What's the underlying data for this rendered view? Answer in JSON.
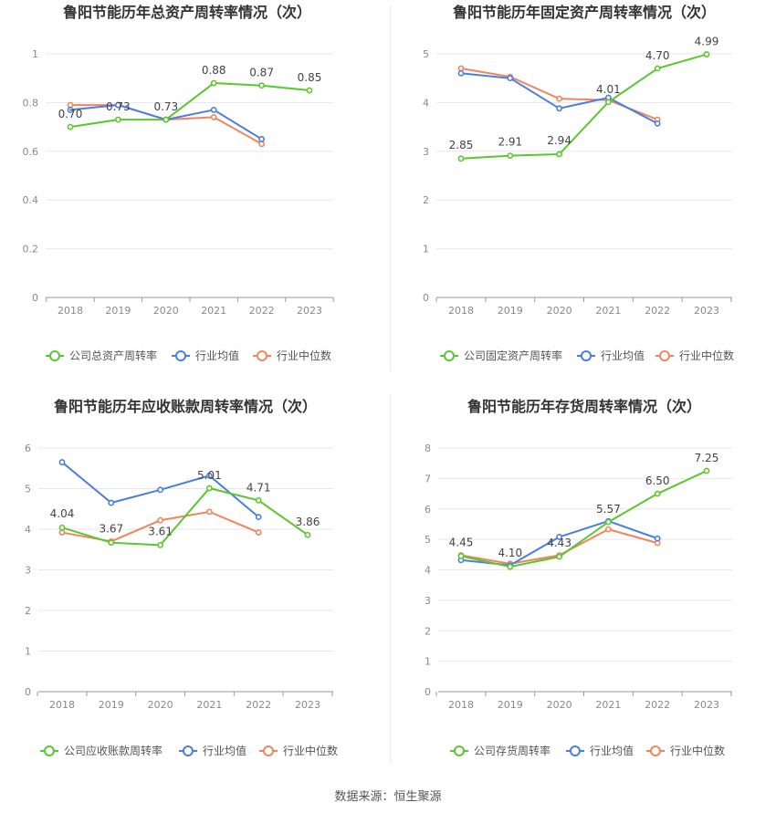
{
  "source_text": "数据来源：恒生聚源",
  "colors": {
    "company": "#5bc72e",
    "avg": "#4a7ee0",
    "median": "#f0855e",
    "grid": "#e6e6ef",
    "axis": "#999999"
  },
  "chart_data": [
    {
      "type": "line",
      "title": "鲁阳节能历年总资产周转率情况（次）",
      "categories": [
        "2018",
        "2019",
        "2020",
        "2021",
        "2022",
        "2023"
      ],
      "ylim": [
        0,
        1
      ],
      "yticks": [
        "0",
        "0.2",
        "0.4",
        "0.6",
        "0.8",
        "1"
      ],
      "ytick_values": [
        0,
        0.2,
        0.4,
        0.6,
        0.8,
        1
      ],
      "grid": true,
      "legend_position": "bottom",
      "series": [
        {
          "name": "公司总资产周转率",
          "role": "company",
          "values": [
            0.7,
            0.73,
            0.73,
            0.88,
            0.87,
            0.85
          ],
          "labels": [
            "0.70",
            "0.73",
            "0.73",
            "0.88",
            "0.87",
            "0.85"
          ]
        },
        {
          "name": "行业均值",
          "role": "avg",
          "values": [
            0.77,
            0.79,
            0.73,
            0.77,
            0.65,
            null
          ]
        },
        {
          "name": "行业中位数",
          "role": "median",
          "values": [
            0.79,
            0.79,
            0.73,
            0.74,
            0.63,
            null
          ]
        }
      ]
    },
    {
      "type": "line",
      "title": "鲁阳节能历年固定资产周转率情况（次）",
      "categories": [
        "2018",
        "2019",
        "2020",
        "2021",
        "2022",
        "2023"
      ],
      "ylim": [
        0,
        5
      ],
      "yticks": [
        "0",
        "1",
        "2",
        "3",
        "4",
        "5"
      ],
      "ytick_values": [
        0,
        1,
        2,
        3,
        4,
        5
      ],
      "grid": true,
      "legend_position": "bottom",
      "series": [
        {
          "name": "公司固定资产周转率",
          "role": "company",
          "values": [
            2.85,
            2.91,
            2.94,
            4.01,
            4.7,
            4.99
          ],
          "labels": [
            "2.85",
            "2.91",
            "2.94",
            "4.01",
            "4.70",
            "4.99"
          ]
        },
        {
          "name": "行业均值",
          "role": "avg",
          "values": [
            4.6,
            4.5,
            3.88,
            4.1,
            3.57,
            null
          ]
        },
        {
          "name": "行业中位数",
          "role": "median",
          "values": [
            4.7,
            4.53,
            4.08,
            4.05,
            3.65,
            null
          ]
        }
      ]
    },
    {
      "type": "line",
      "title": "鲁阳节能历年应收账款周转率情况（次）",
      "categories": [
        "2018",
        "2019",
        "2020",
        "2021",
        "2022",
        "2023"
      ],
      "ylim": [
        0,
        6
      ],
      "yticks": [
        "0",
        "1",
        "2",
        "3",
        "4",
        "5",
        "6"
      ],
      "ytick_values": [
        0,
        1,
        2,
        3,
        4,
        5,
        6
      ],
      "grid": true,
      "legend_position": "bottom",
      "series": [
        {
          "name": "公司应收账款周转率",
          "role": "company",
          "values": [
            4.04,
            3.67,
            3.61,
            5.01,
            4.71,
            3.86
          ],
          "labels": [
            "4.04",
            "3.67",
            "3.61",
            "5.01",
            "4.71",
            "3.86"
          ]
        },
        {
          "name": "行业均值",
          "role": "avg",
          "values": [
            5.65,
            4.65,
            4.97,
            5.32,
            4.3,
            null
          ]
        },
        {
          "name": "行业中位数",
          "role": "median",
          "values": [
            3.92,
            3.7,
            4.22,
            4.43,
            3.92,
            null
          ]
        }
      ]
    },
    {
      "type": "line",
      "title": "鲁阳节能历年存货周转率情况（次）",
      "categories": [
        "2018",
        "2019",
        "2020",
        "2021",
        "2022",
        "2023"
      ],
      "ylim": [
        0,
        8
      ],
      "yticks": [
        "0",
        "1",
        "2",
        "3",
        "4",
        "5",
        "6",
        "7",
        "8"
      ],
      "ytick_values": [
        0,
        1,
        2,
        3,
        4,
        5,
        6,
        7,
        8
      ],
      "grid": true,
      "legend_position": "bottom",
      "series": [
        {
          "name": "公司存货周转率",
          "role": "company",
          "values": [
            4.45,
            4.1,
            4.43,
            5.57,
            6.5,
            7.25
          ],
          "labels": [
            "4.45",
            "4.10",
            "4.43",
            "5.57",
            "6.50",
            "7.25"
          ]
        },
        {
          "name": "行业均值",
          "role": "avg",
          "values": [
            4.32,
            4.15,
            5.08,
            5.6,
            5.03,
            null
          ]
        },
        {
          "name": "行业中位数",
          "role": "median",
          "values": [
            4.48,
            4.2,
            4.48,
            5.33,
            4.88,
            null
          ]
        }
      ]
    }
  ]
}
